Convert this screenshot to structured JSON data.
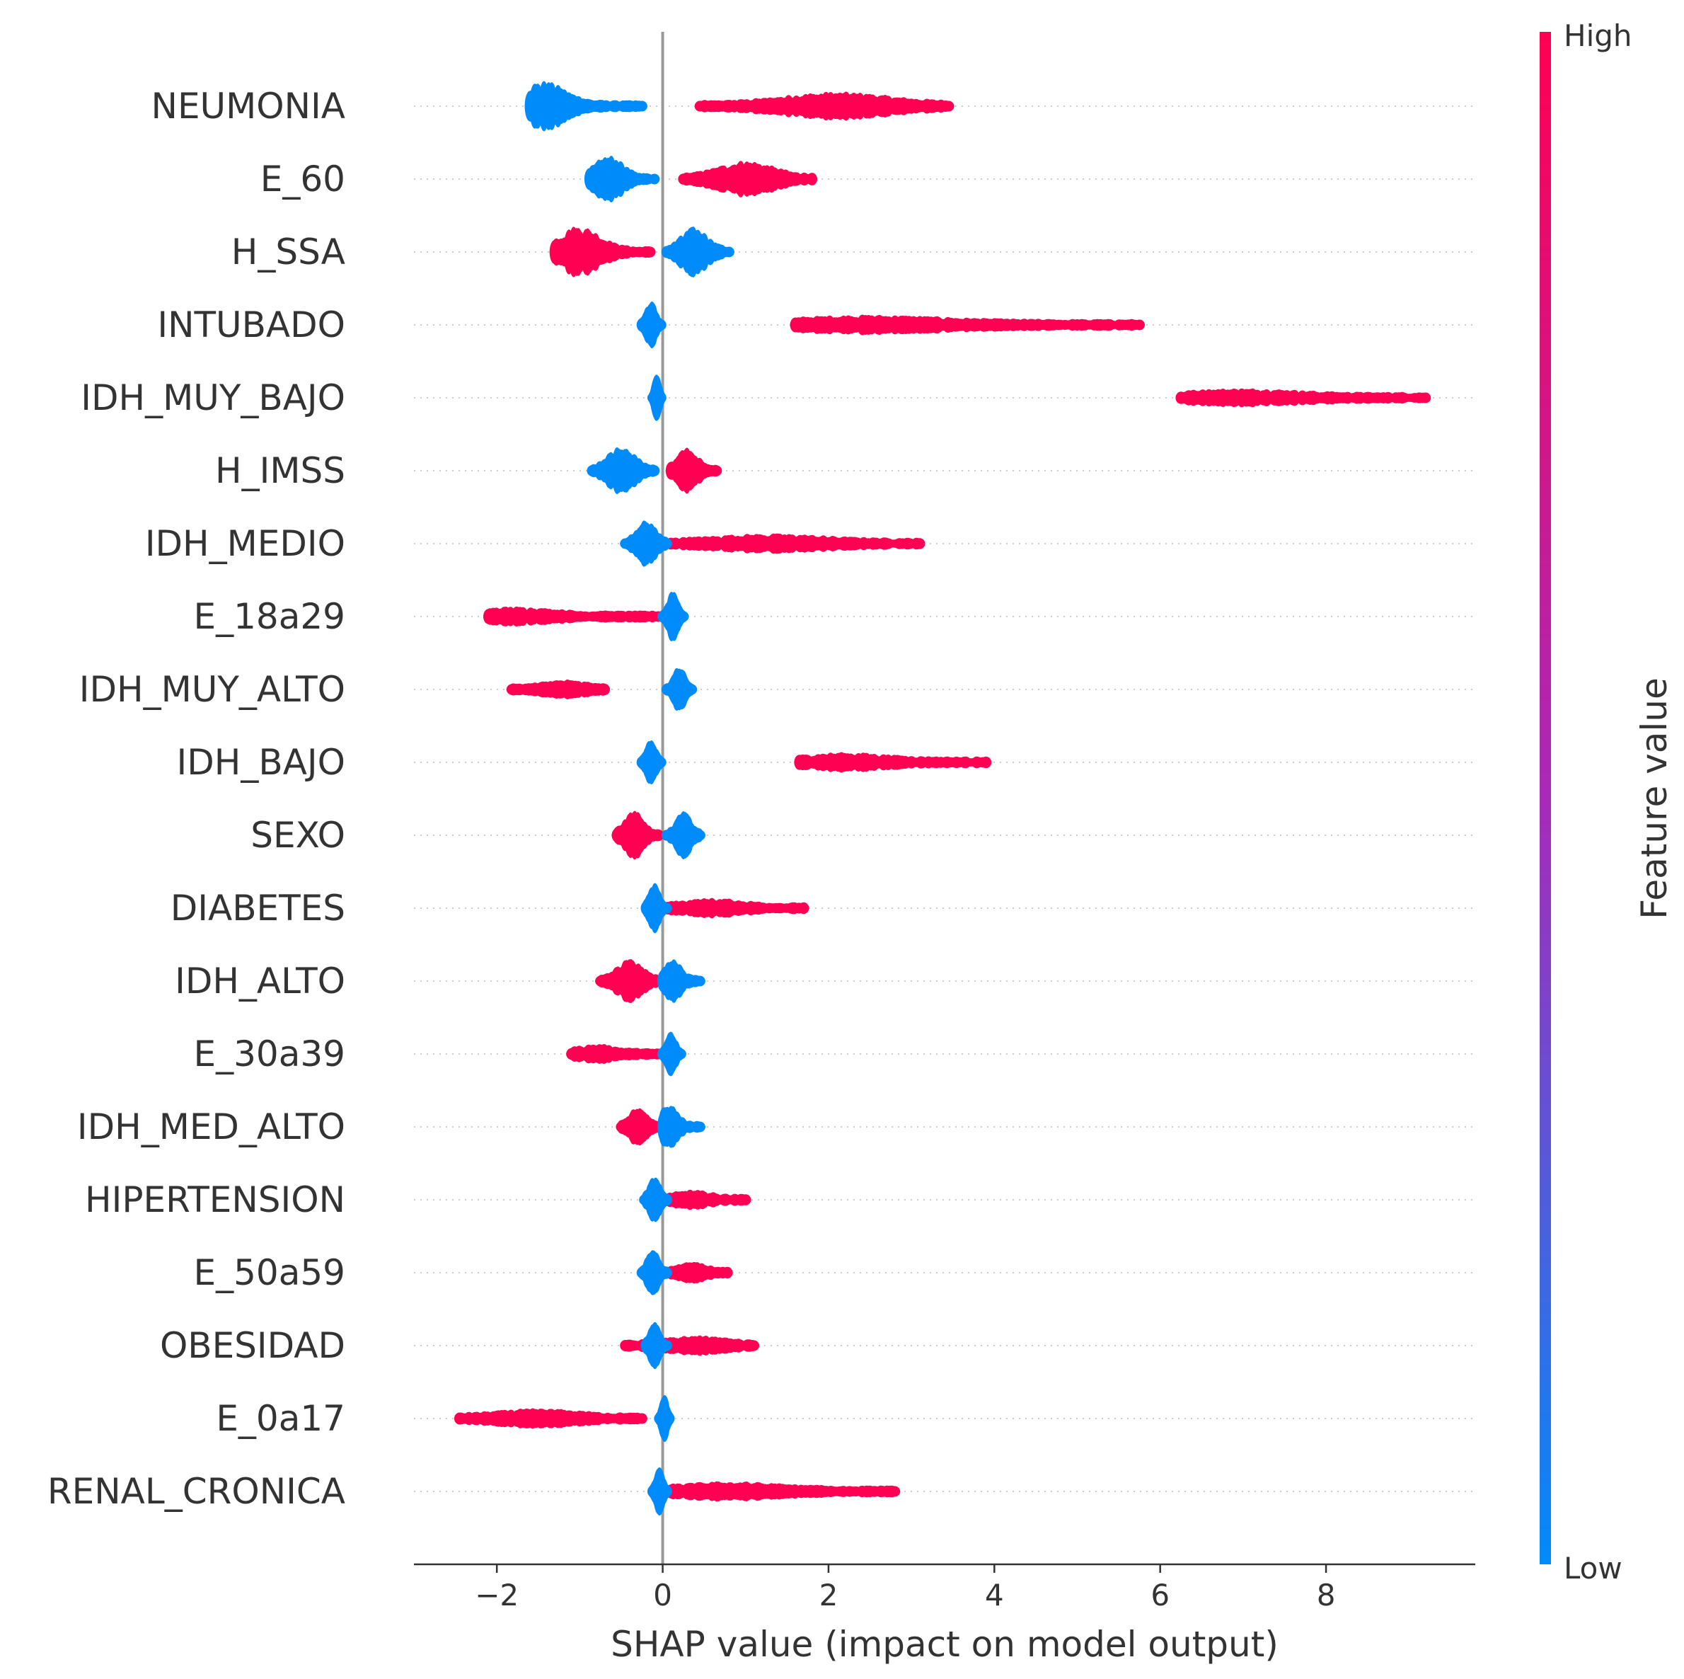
{
  "chart_data": {
    "type": "scatter",
    "subtype": "shap-beeswarm",
    "title": "",
    "xlabel": "SHAP value (impact on model output)",
    "ylabel": "",
    "xlim": [
      -3.0,
      9.8
    ],
    "xticks": [
      -2,
      0,
      2,
      4,
      6,
      8
    ],
    "xtick_labels": [
      "−2",
      "0",
      "2",
      "4",
      "6",
      "8"
    ],
    "zero_line": 0,
    "colorbar": {
      "label": "Feature value",
      "high_label": "High",
      "low_label": "Low",
      "high_color": "#ff0052",
      "mid_color": "#a82ab8",
      "low_color": "#008bfb"
    },
    "features": [
      {
        "name": "NEUMONIA",
        "low": {
          "min": -1.6,
          "max": -0.25,
          "center": -1.45,
          "spread": 0.45
        },
        "high": {
          "min": 0.45,
          "max": 3.45,
          "center": 2.1,
          "spread": 0.2
        }
      },
      {
        "name": "E_60",
        "low": {
          "min": -0.88,
          "max": -0.1,
          "center": -0.65,
          "spread": 0.42
        },
        "high": {
          "min": 0.25,
          "max": 1.8,
          "center": 1.0,
          "spread": 0.3
        }
      },
      {
        "name": "H_SSA",
        "high": {
          "min": -1.3,
          "max": -0.15,
          "center": -1.0,
          "spread": 0.48
        },
        "low": {
          "min": 0.05,
          "max": 0.8,
          "center": 0.38,
          "spread": 0.45
        }
      },
      {
        "name": "INTUBADO",
        "low": {
          "min": -0.25,
          "max": -0.02,
          "center": -0.14,
          "spread": 0.45
        },
        "high": {
          "min": 1.6,
          "max": 5.75,
          "center": 2.5,
          "spread": 0.1
        }
      },
      {
        "name": "IDH_MUY_BAJO",
        "low": {
          "min": -0.12,
          "max": -0.02,
          "center": -0.07,
          "spread": 0.42
        },
        "high": {
          "min": 6.25,
          "max": 9.2,
          "center": 7.0,
          "spread": 0.09
        }
      },
      {
        "name": "H_IMSS",
        "low": {
          "min": -0.85,
          "max": -0.1,
          "center": -0.5,
          "spread": 0.45
        },
        "high": {
          "min": 0.1,
          "max": 0.65,
          "center": 0.3,
          "spread": 0.4
        }
      },
      {
        "name": "IDH_MEDIO",
        "low": {
          "min": -0.45,
          "max": 0.05,
          "center": -0.2,
          "spread": 0.42
        },
        "high": {
          "min": 0.1,
          "max": 3.1,
          "center": 1.3,
          "spread": 0.1
        }
      },
      {
        "name": "E_18a29",
        "high": {
          "min": -2.1,
          "max": -0.05,
          "center": -1.8,
          "spread": 0.1
        },
        "low": {
          "min": 0.0,
          "max": 0.25,
          "center": 0.12,
          "spread": 0.45
        }
      },
      {
        "name": "IDH_MUY_ALTO",
        "high": {
          "min": -1.82,
          "max": -0.7,
          "center": -1.2,
          "spread": 0.1
        },
        "low": {
          "min": 0.05,
          "max": 0.35,
          "center": 0.2,
          "spread": 0.4
        }
      },
      {
        "name": "IDH_BAJO",
        "low": {
          "min": -0.25,
          "max": -0.02,
          "center": -0.14,
          "spread": 0.4
        },
        "high": {
          "min": 1.65,
          "max": 3.9,
          "center": 2.2,
          "spread": 0.1
        }
      },
      {
        "name": "SEXO",
        "high": {
          "min": -0.55,
          "max": -0.05,
          "center": -0.35,
          "spread": 0.45
        },
        "low": {
          "min": 0.05,
          "max": 0.45,
          "center": 0.25,
          "spread": 0.42
        }
      },
      {
        "name": "DIABETES",
        "low": {
          "min": -0.2,
          "max": 0.05,
          "center": -0.1,
          "spread": 0.45
        },
        "high": {
          "min": 0.05,
          "max": 1.7,
          "center": 0.6,
          "spread": 0.1
        }
      },
      {
        "name": "IDH_ALTO",
        "high": {
          "min": -0.75,
          "max": -0.05,
          "center": -0.4,
          "spread": 0.38
        },
        "low": {
          "min": 0.0,
          "max": 0.45,
          "center": 0.12,
          "spread": 0.42
        }
      },
      {
        "name": "E_30a39",
        "high": {
          "min": -1.1,
          "max": -0.05,
          "center": -0.8,
          "spread": 0.1
        },
        "low": {
          "min": 0.0,
          "max": 0.22,
          "center": 0.1,
          "spread": 0.42
        }
      },
      {
        "name": "IDH_MED_ALTO",
        "high": {
          "min": -0.5,
          "max": -0.05,
          "center": -0.3,
          "spread": 0.32
        },
        "low": {
          "min": 0.0,
          "max": 0.45,
          "center": 0.08,
          "spread": 0.42
        }
      },
      {
        "name": "HIPERTENSION",
        "low": {
          "min": -0.22,
          "max": 0.05,
          "center": -0.1,
          "spread": 0.42
        },
        "high": {
          "min": 0.05,
          "max": 1.0,
          "center": 0.35,
          "spread": 0.1
        }
      },
      {
        "name": "E_50a59",
        "low": {
          "min": -0.25,
          "max": 0.05,
          "center": -0.12,
          "spread": 0.42
        },
        "high": {
          "min": 0.05,
          "max": 0.78,
          "center": 0.35,
          "spread": 0.12
        }
      },
      {
        "name": "OBESIDAD",
        "high": {
          "min": -0.45,
          "max": 1.1,
          "center": 0.4,
          "spread": 0.1
        },
        "low": {
          "min": -0.2,
          "max": 0.05,
          "center": -0.1,
          "spread": 0.42
        }
      },
      {
        "name": "E_0a17",
        "high": {
          "min": -2.45,
          "max": -0.25,
          "center": -1.5,
          "spread": 0.1
        },
        "low": {
          "min": -0.04,
          "max": 0.08,
          "center": 0.02,
          "spread": 0.42
        }
      },
      {
        "name": "RENAL_CRONICA",
        "low": {
          "min": -0.12,
          "max": 0.05,
          "center": -0.04,
          "spread": 0.42
        },
        "high": {
          "min": 0.05,
          "max": 2.8,
          "center": 0.8,
          "spread": 0.1
        }
      }
    ]
  }
}
